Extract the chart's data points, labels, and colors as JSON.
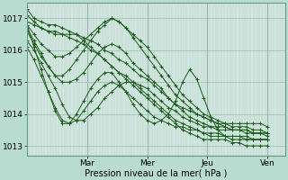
{
  "bg_color": "#b8ddd0",
  "plot_bg_color": "#cce8e0",
  "line_color": "#1a5c1a",
  "marker": "+",
  "xlabel_text": "Pression niveau de la mer( hPa )",
  "xtick_labels": [
    "Mar",
    "Mer",
    "Jeu",
    "Ven"
  ],
  "xtick_pos": [
    1,
    2,
    3,
    4
  ],
  "xlim": [
    0,
    4.3
  ],
  "ylim": [
    1012.7,
    1017.5
  ],
  "yticks": [
    1013,
    1014,
    1015,
    1016,
    1017
  ],
  "series": [
    [
      1017.3,
      1017.0,
      1016.9,
      1016.8,
      1016.8,
      1016.7,
      1016.6,
      1016.5,
      1016.3,
      1016.1,
      1015.9,
      1015.7,
      1015.5,
      1015.3,
      1015.1,
      1014.9,
      1014.7,
      1014.5,
      1014.3,
      1014.1,
      1013.9,
      1013.7,
      1013.5,
      1013.4,
      1013.3,
      1013.2,
      1013.2,
      1013.2,
      1013.2,
      1013.1,
      1013.1,
      1013.0,
      1013.0,
      1013.0,
      1013.0
    ],
    [
      1017.1,
      1016.9,
      1016.7,
      1016.6,
      1016.5,
      1016.5,
      1016.4,
      1016.3,
      1016.2,
      1016.0,
      1015.9,
      1015.7,
      1015.5,
      1015.3,
      1015.2,
      1015.0,
      1014.8,
      1014.6,
      1014.4,
      1014.2,
      1014.0,
      1013.8,
      1013.7,
      1013.6,
      1013.5,
      1013.4,
      1013.3,
      1013.3,
      1013.3,
      1013.3,
      1013.3,
      1013.2,
      1013.2,
      1013.2,
      1013.2
    ],
    [
      1016.9,
      1016.8,
      1016.7,
      1016.6,
      1016.6,
      1016.5,
      1016.5,
      1016.5,
      1016.4,
      1016.3,
      1016.2,
      1016.0,
      1015.9,
      1015.7,
      1015.6,
      1015.4,
      1015.2,
      1015.1,
      1014.9,
      1014.7,
      1014.5,
      1014.3,
      1014.2,
      1014.1,
      1014.0,
      1013.9,
      1013.8,
      1013.7,
      1013.6,
      1013.5,
      1013.5,
      1013.4,
      1013.4,
      1013.4,
      1013.3
    ],
    [
      1016.8,
      1016.5,
      1016.2,
      1016.0,
      1015.8,
      1015.8,
      1015.9,
      1016.1,
      1016.3,
      1016.5,
      1016.7,
      1016.9,
      1017.0,
      1016.9,
      1016.7,
      1016.5,
      1016.3,
      1016.1,
      1015.8,
      1015.5,
      1015.2,
      1014.9,
      1014.6,
      1014.4,
      1014.2,
      1014.0,
      1013.9,
      1013.8,
      1013.7,
      1013.6,
      1013.6,
      1013.6,
      1013.5,
      1013.5,
      1013.4
    ],
    [
      1016.7,
      1016.3,
      1015.9,
      1015.5,
      1015.2,
      1015.2,
      1015.4,
      1015.7,
      1016.0,
      1016.3,
      1016.6,
      1016.8,
      1017.0,
      1016.9,
      1016.7,
      1016.4,
      1016.1,
      1015.8,
      1015.5,
      1015.2,
      1014.9,
      1014.6,
      1014.4,
      1014.2,
      1014.0,
      1013.9,
      1013.8,
      1013.7,
      1013.7,
      1013.7,
      1013.7,
      1013.7,
      1013.7,
      1013.7,
      1013.6
    ],
    [
      1016.6,
      1016.2,
      1015.8,
      1015.5,
      1015.2,
      1015.0,
      1015.0,
      1015.1,
      1015.3,
      1015.6,
      1015.9,
      1016.1,
      1016.2,
      1016.1,
      1015.9,
      1015.6,
      1015.4,
      1015.2,
      1015.0,
      1014.8,
      1014.5,
      1014.3,
      1014.1,
      1013.9,
      1013.8,
      1013.7,
      1013.6,
      1013.6,
      1013.6,
      1013.5,
      1013.5,
      1013.5,
      1013.4,
      1013.4,
      1013.4
    ],
    [
      1016.3,
      1016.0,
      1015.6,
      1015.2,
      1014.8,
      1014.3,
      1013.9,
      1013.8,
      1013.8,
      1014.0,
      1014.2,
      1014.5,
      1014.7,
      1014.9,
      1015.0,
      1015.0,
      1014.9,
      1014.8,
      1014.6,
      1014.4,
      1014.2,
      1014.1,
      1013.9,
      1013.8,
      1013.7,
      1013.6,
      1013.6,
      1013.5,
      1013.5,
      1013.5,
      1013.5,
      1013.5,
      1013.4,
      1013.4,
      1013.4
    ],
    [
      1016.1,
      1015.7,
      1015.2,
      1014.7,
      1014.2,
      1013.8,
      1013.7,
      1013.8,
      1014.1,
      1014.4,
      1014.7,
      1014.9,
      1015.0,
      1014.9,
      1014.7,
      1014.5,
      1014.3,
      1014.1,
      1013.9,
      1013.8,
      1013.7,
      1013.6,
      1013.6,
      1013.5,
      1013.5,
      1013.4,
      1013.4,
      1013.4,
      1013.3,
      1013.3,
      1013.3,
      1013.3,
      1013.2,
      1013.2,
      1013.2
    ],
    [
      1016.8,
      1016.1,
      1015.4,
      1014.7,
      1014.1,
      1013.7,
      1013.7,
      1014.0,
      1014.4,
      1014.8,
      1015.1,
      1015.3,
      1015.3,
      1015.0,
      1014.7,
      1014.3,
      1014.0,
      1013.8,
      1013.7,
      1013.8,
      1014.0,
      1014.4,
      1015.0,
      1015.4,
      1015.1,
      1014.5,
      1013.9,
      1013.5,
      1013.3,
      1013.2,
      1013.2,
      1013.2,
      1013.2,
      1013.2,
      1013.2
    ]
  ]
}
